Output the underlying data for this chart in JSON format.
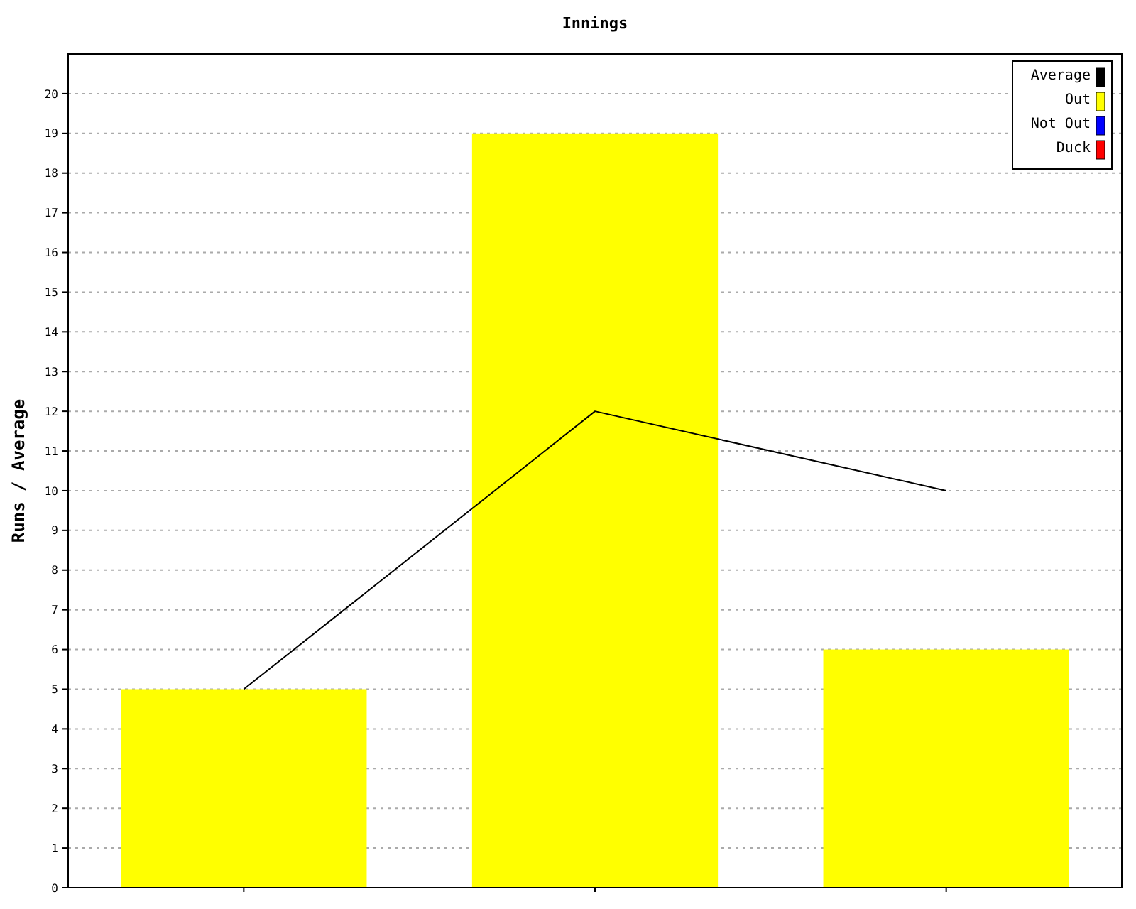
{
  "chart_data": {
    "type": "bar",
    "title": "Innings",
    "ylabel": "Runs / Average",
    "categories": [
      null,
      null,
      null
    ],
    "ylim": [
      0,
      21
    ],
    "yticks": [
      0,
      1,
      2,
      3,
      4,
      5,
      6,
      7,
      8,
      9,
      10,
      11,
      12,
      13,
      14,
      15,
      16,
      17,
      18,
      19,
      20
    ],
    "grid": "y",
    "legend": "top right",
    "line_style": "solid",
    "marker": "none",
    "series": [
      {
        "name": "Average",
        "type": "line",
        "color": "#000000",
        "values": [
          5,
          12,
          10
        ]
      },
      {
        "name": "Out",
        "color": "#ffff00",
        "values": [
          5,
          19,
          6
        ]
      },
      {
        "name": "Not Out",
        "color": "#0000ff",
        "values": [
          0,
          0,
          0
        ]
      },
      {
        "name": "Duck",
        "color": "#ff0000",
        "values": [
          0,
          0,
          0
        ]
      }
    ]
  }
}
